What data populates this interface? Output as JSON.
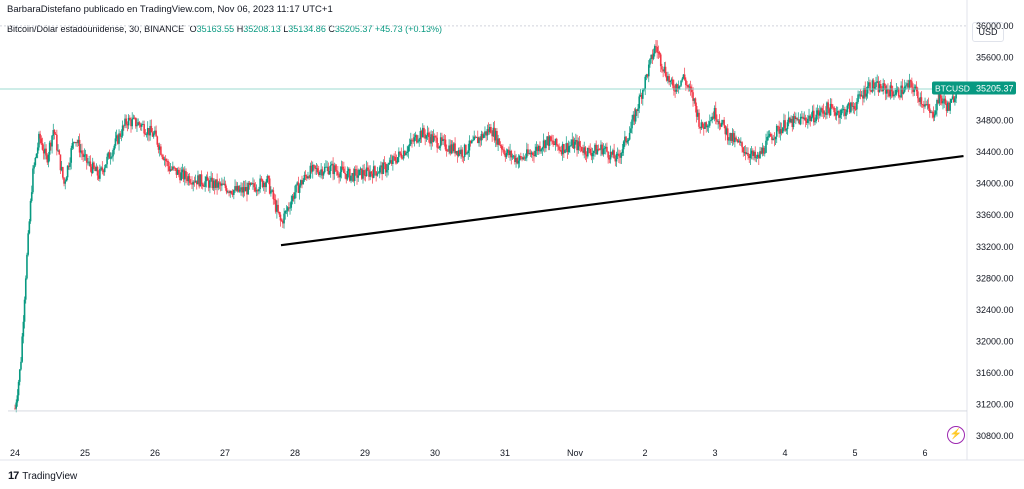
{
  "header": {
    "published": "BarbaraDistefano publicado en TradingView.com, Nov 06, 2023 11:17 UTC+1"
  },
  "legend": {
    "symbol": "Bitcoin/Dólar estadounidense, 30, BINANCE",
    "o_label": "O",
    "o": "35163.55",
    "h_label": "H",
    "h": "35208.13",
    "l_label": "L",
    "l": "35134.86",
    "c_label": "C",
    "c": "35205.37",
    "change": "+45.73 (+0.13%)"
  },
  "currency": "USD",
  "price_badge": {
    "symbol": "BTCUSD",
    "price": "35205.37"
  },
  "footer": {
    "brand": "TradingView"
  },
  "colors": {
    "up": "#089981",
    "down": "#f23645",
    "accent": "#089981",
    "trendline": "#000000",
    "alert": "#9c27b0"
  },
  "chart_data": {
    "type": "candlestick",
    "x_tick_labels": [
      "24",
      "25",
      "26",
      "27",
      "28",
      "29",
      "30",
      "31",
      "Nov",
      "2",
      "3",
      "4",
      "5",
      "6"
    ],
    "y_tick_labels": [
      "36000.00",
      "35600.00",
      "35200.00",
      "34800.00",
      "34400.00",
      "34000.00",
      "33600.00",
      "33200.00",
      "32800.00",
      "32400.00",
      "32000.00",
      "31600.00",
      "31200.00",
      "30800.00"
    ],
    "ylim": [
      30650,
      36150
    ],
    "last_price": 35205.37,
    "price_path": [
      {
        "x": 0.0,
        "y": 31150
      },
      {
        "x": 0.08,
        "y": 31700
      },
      {
        "x": 0.15,
        "y": 32800
      },
      {
        "x": 0.25,
        "y": 34100
      },
      {
        "x": 0.35,
        "y": 34600
      },
      {
        "x": 0.45,
        "y": 34300
      },
      {
        "x": 0.55,
        "y": 34700
      },
      {
        "x": 0.7,
        "y": 34000
      },
      {
        "x": 0.85,
        "y": 34600
      },
      {
        "x": 1.0,
        "y": 34300
      },
      {
        "x": 1.2,
        "y": 34100
      },
      {
        "x": 1.4,
        "y": 34450
      },
      {
        "x": 1.6,
        "y": 34800
      },
      {
        "x": 1.8,
        "y": 34750
      },
      {
        "x": 2.0,
        "y": 34600
      },
      {
        "x": 2.2,
        "y": 34200
      },
      {
        "x": 2.4,
        "y": 34100
      },
      {
        "x": 2.6,
        "y": 34050
      },
      {
        "x": 2.8,
        "y": 34000
      },
      {
        "x": 3.0,
        "y": 33950
      },
      {
        "x": 3.2,
        "y": 33900
      },
      {
        "x": 3.4,
        "y": 33950
      },
      {
        "x": 3.6,
        "y": 34050
      },
      {
        "x": 3.8,
        "y": 33500
      },
      {
        "x": 4.0,
        "y": 33900
      },
      {
        "x": 4.2,
        "y": 34150
      },
      {
        "x": 4.5,
        "y": 34200
      },
      {
        "x": 4.8,
        "y": 34100
      },
      {
        "x": 5.1,
        "y": 34150
      },
      {
        "x": 5.3,
        "y": 34200
      },
      {
        "x": 5.6,
        "y": 34450
      },
      {
        "x": 5.8,
        "y": 34650
      },
      {
        "x": 6.1,
        "y": 34500
      },
      {
        "x": 6.4,
        "y": 34400
      },
      {
        "x": 6.6,
        "y": 34550
      },
      {
        "x": 6.8,
        "y": 34700
      },
      {
        "x": 7.0,
        "y": 34400
      },
      {
        "x": 7.2,
        "y": 34300
      },
      {
        "x": 7.4,
        "y": 34400
      },
      {
        "x": 7.6,
        "y": 34550
      },
      {
        "x": 7.8,
        "y": 34450
      },
      {
        "x": 8.0,
        "y": 34500
      },
      {
        "x": 8.2,
        "y": 34400
      },
      {
        "x": 8.4,
        "y": 34450
      },
      {
        "x": 8.6,
        "y": 34300
      },
      {
        "x": 8.8,
        "y": 34700
      },
      {
        "x": 9.0,
        "y": 35300
      },
      {
        "x": 9.15,
        "y": 35750
      },
      {
        "x": 9.25,
        "y": 35500
      },
      {
        "x": 9.4,
        "y": 35200
      },
      {
        "x": 9.55,
        "y": 35350
      },
      {
        "x": 9.7,
        "y": 35050
      },
      {
        "x": 9.8,
        "y": 34700
      },
      {
        "x": 10.0,
        "y": 34900
      },
      {
        "x": 10.2,
        "y": 34600
      },
      {
        "x": 10.4,
        "y": 34450
      },
      {
        "x": 10.6,
        "y": 34300
      },
      {
        "x": 10.8,
        "y": 34600
      },
      {
        "x": 11.0,
        "y": 34750
      },
      {
        "x": 11.2,
        "y": 34800
      },
      {
        "x": 11.4,
        "y": 34850
      },
      {
        "x": 11.6,
        "y": 34950
      },
      {
        "x": 11.8,
        "y": 34900
      },
      {
        "x": 12.0,
        "y": 35000
      },
      {
        "x": 12.2,
        "y": 35250
      },
      {
        "x": 12.4,
        "y": 35200
      },
      {
        "x": 12.6,
        "y": 35150
      },
      {
        "x": 12.8,
        "y": 35250
      },
      {
        "x": 13.0,
        "y": 35000
      },
      {
        "x": 13.1,
        "y": 34850
      },
      {
        "x": 13.2,
        "y": 35100
      },
      {
        "x": 13.35,
        "y": 34950
      },
      {
        "x": 13.45,
        "y": 35205
      }
    ],
    "trendline": {
      "start": {
        "x": 3.8,
        "y": 33220
      },
      "end": {
        "x": 13.55,
        "y": 34350
      }
    },
    "horizontal_line": 35200,
    "top_line": 36000
  }
}
